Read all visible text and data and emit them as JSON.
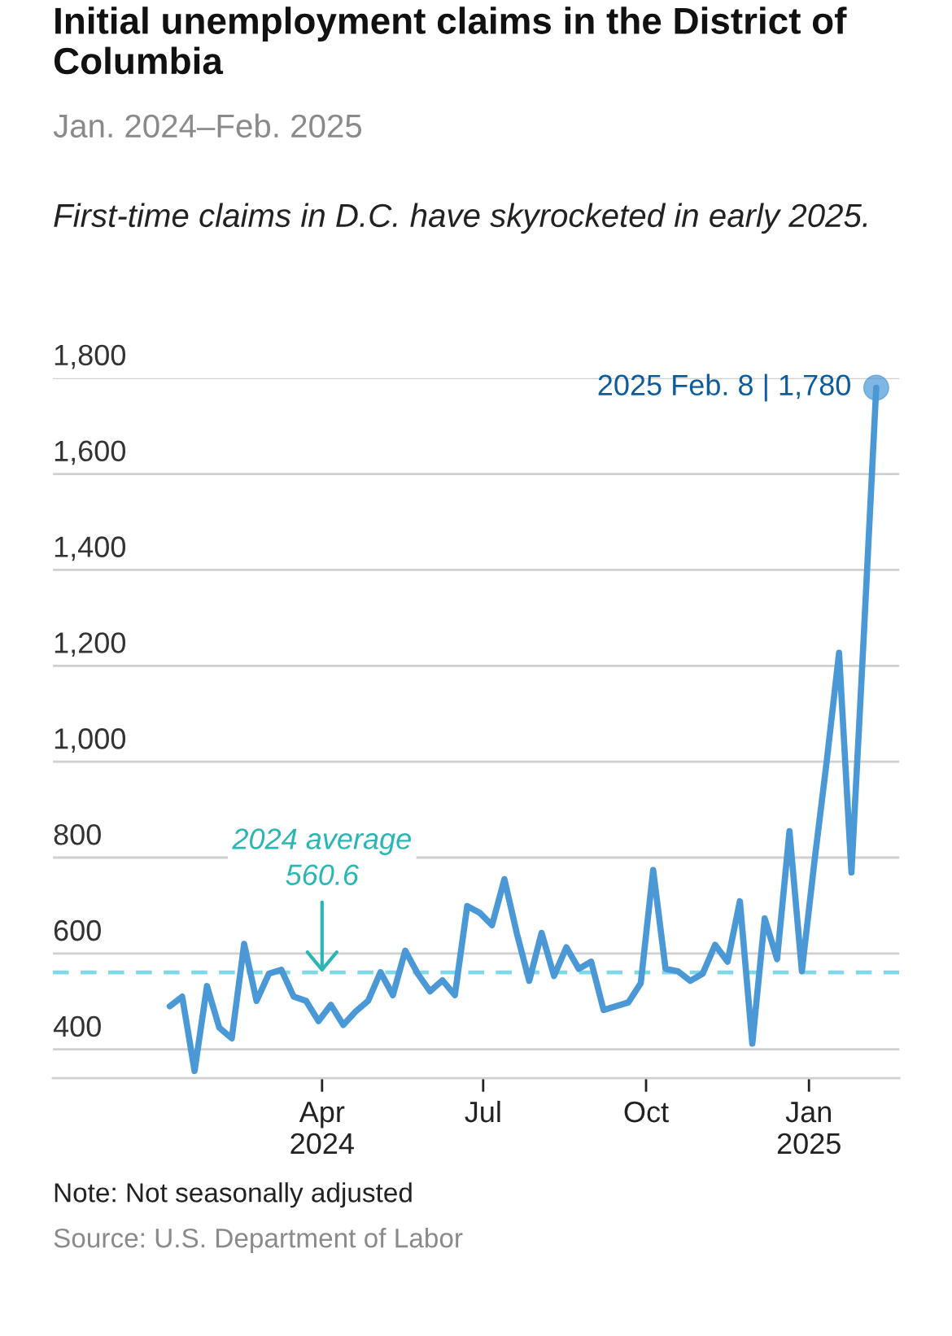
{
  "chart_data": {
    "type": "line",
    "title": "Initial unemployment claims in the District of Columbia",
    "subtitle": "Jan. 2024–Feb. 2025",
    "x": [
      "2024-01-06",
      "2024-01-13",
      "2024-01-20",
      "2024-01-27",
      "2024-02-03",
      "2024-02-10",
      "2024-02-17",
      "2024-02-24",
      "2024-03-02",
      "2024-03-09",
      "2024-03-16",
      "2024-03-23",
      "2024-03-30",
      "2024-04-06",
      "2024-04-13",
      "2024-04-20",
      "2024-04-27",
      "2024-05-04",
      "2024-05-11",
      "2024-05-18",
      "2024-05-25",
      "2024-06-01",
      "2024-06-08",
      "2024-06-15",
      "2024-06-22",
      "2024-06-29",
      "2024-07-06",
      "2024-07-13",
      "2024-07-20",
      "2024-07-27",
      "2024-08-03",
      "2024-08-10",
      "2024-08-17",
      "2024-08-24",
      "2024-08-31",
      "2024-09-07",
      "2024-09-14",
      "2024-09-21",
      "2024-09-28",
      "2024-10-05",
      "2024-10-12",
      "2024-10-19",
      "2024-10-26",
      "2024-11-02",
      "2024-11-09",
      "2024-11-16",
      "2024-11-23",
      "2024-11-30",
      "2024-12-07",
      "2024-12-14",
      "2024-12-21",
      "2024-12-28",
      "2025-01-04",
      "2025-01-11",
      "2025-01-18",
      "2025-01-25",
      "2025-02-01",
      "2025-02-08"
    ],
    "series": [
      {
        "color": "#4a98d6",
        "values": [
          490,
          510,
          355,
          532,
          445,
          423,
          620,
          501,
          558,
          566,
          510,
          501,
          459,
          493,
          451,
          479,
          501,
          561,
          513,
          606,
          558,
          521,
          544,
          513,
          699,
          685,
          659,
          755,
          642,
          543,
          643,
          553,
          613,
          568,
          583,
          482,
          490,
          498,
          538,
          774,
          568,
          563,
          543,
          558,
          618,
          583,
          709,
          412,
          673,
          588,
          855,
          563,
          789,
          1000,
          1227,
          769,
          1265,
          1780
        ]
      }
    ],
    "xlim": [
      "2023-11-01",
      "2025-02-21"
    ],
    "xticks": [
      {
        "value": "2024-04-01",
        "label": "Apr\n2024"
      },
      {
        "value": "2024-07-01",
        "label": "Jul"
      },
      {
        "value": "2024-10-01",
        "label": "Oct"
      },
      {
        "value": "2025-01-01",
        "label": "Jan\n2025"
      }
    ],
    "ylim": [
      340,
      1800
    ],
    "yticks": [
      {
        "value": 400,
        "label": "400"
      },
      {
        "value": 600,
        "label": "600"
      },
      {
        "value": 800,
        "label": "800"
      },
      {
        "value": 1000,
        "label": "1,000"
      },
      {
        "value": 1200,
        "label": "1,200"
      },
      {
        "value": 1400,
        "label": "1,400"
      },
      {
        "value": 1600,
        "label": "1,600"
      },
      {
        "value": 1800,
        "label": "1,800"
      }
    ],
    "grid": "y",
    "line_style": "solid",
    "marker": "none",
    "ref_lines": [
      {
        "axis": "y",
        "value": 560.6,
        "color": "#7fd8e8",
        "line_style": "dashed"
      }
    ],
    "annotations": [
      "First-time claims in D.C. have skyrocketed in early 2025.",
      {
        "text": "2024 average\n560.6",
        "x": "2024-04-01",
        "y": 560.6
      },
      {
        "text": "2025 Feb. 8 | 1,780",
        "x": "2025-02-08",
        "y": 1780
      },
      "Note: Not seasonally adjusted",
      "Source: U.S. Department of Labor"
    ]
  }
}
